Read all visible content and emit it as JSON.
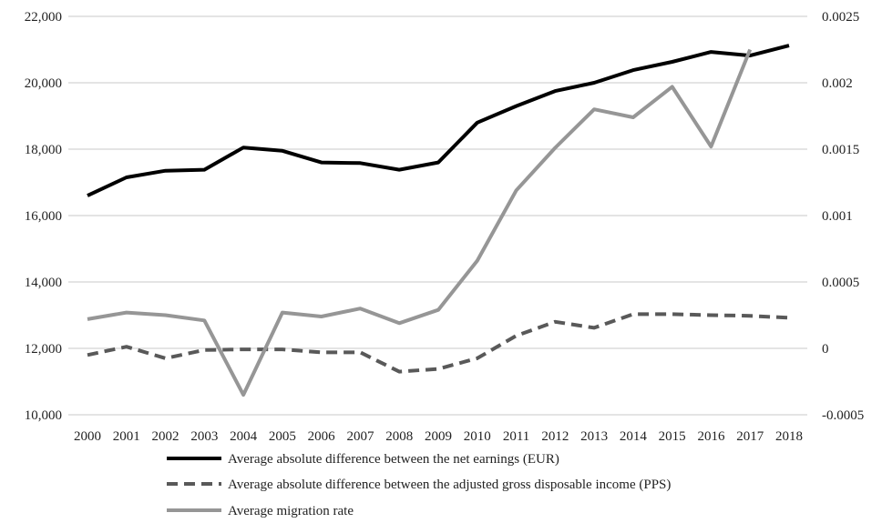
{
  "chart_data": {
    "type": "line",
    "x": [
      "2000",
      "2001",
      "2002",
      "2003",
      "2004",
      "2005",
      "2006",
      "2007",
      "2008",
      "2009",
      "2010",
      "2011",
      "2012",
      "2013",
      "2014",
      "2015",
      "2016",
      "2017",
      "2018"
    ],
    "y_left": {
      "ylim": [
        10000,
        22000
      ],
      "ticks": [
        10000,
        12000,
        14000,
        16000,
        18000,
        20000,
        22000
      ],
      "tick_labels": [
        "10,000",
        "12,000",
        "14,000",
        "16,000",
        "18,000",
        "20,000",
        "22,000"
      ]
    },
    "y_right": {
      "ylim": [
        -0.0005,
        0.0025
      ],
      "ticks": [
        -0.0005,
        0,
        0.0005,
        0.001,
        0.0015,
        0.002,
        0.0025
      ],
      "tick_labels": [
        "-0.0005",
        "0",
        "0.0005",
        "0.001",
        "0.0015",
        "0.002",
        "0.0025"
      ]
    },
    "grid": true,
    "legend_position": "bottom",
    "series": [
      {
        "name": "Average absolute difference between the net earnings (EUR)",
        "axis": "left",
        "color": "#000000",
        "dash": "solid",
        "values": [
          16600,
          17150,
          17350,
          17380,
          18050,
          17950,
          17600,
          17580,
          17380,
          17600,
          18800,
          19300,
          19750,
          20000,
          20380,
          20630,
          20930,
          20820,
          21120
        ]
      },
      {
        "name": "Average absolute difference between the adjusted gross disposable income (PPS)",
        "axis": "left",
        "color": "#595959",
        "dash": "dashed",
        "values": [
          11800,
          12050,
          11700,
          11950,
          11970,
          11970,
          11880,
          11880,
          11300,
          11380,
          11700,
          12380,
          12800,
          12620,
          13030,
          13030,
          13000,
          12980,
          12920
        ]
      },
      {
        "name": "Average migration rate",
        "axis": "right",
        "color": "#969696",
        "dash": "solid",
        "values": [
          0.00022,
          0.00027,
          0.00025,
          0.00021,
          -0.00035,
          0.00027,
          0.00024,
          0.0003,
          0.00019,
          0.00029,
          0.00066,
          0.00119,
          0.00151,
          0.0018,
          0.00174,
          0.00197,
          0.00152,
          0.00225,
          null
        ]
      }
    ]
  }
}
